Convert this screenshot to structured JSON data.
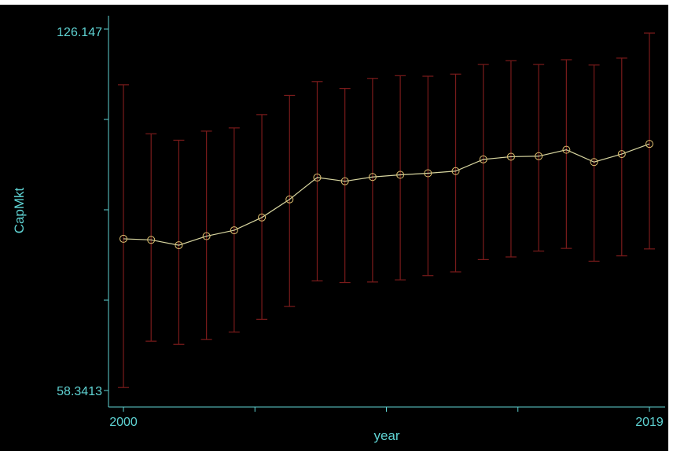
{
  "chart_data": {
    "type": "line",
    "xlabel": "year",
    "ylabel": "CapMkt",
    "x_ticks_labels": [
      "2000",
      "2019"
    ],
    "y_ticks_labels": [
      "58.3413",
      "126.147"
    ],
    "xlim": [
      2000,
      2019
    ],
    "ylim": [
      58.3413,
      126.147
    ],
    "x": [
      2000,
      2001,
      2002,
      2003,
      2004,
      2005,
      2006,
      2007,
      2008,
      2009,
      2010,
      2011,
      2012,
      2013,
      2014,
      2015,
      2016,
      2017,
      2018,
      2019
    ],
    "series": [
      {
        "values": [
          86.8,
          86.6,
          85.6,
          87.3,
          88.4,
          90.8,
          94.2,
          98.3,
          97.6,
          98.4,
          98.8,
          99.1,
          99.5,
          101.7,
          102.2,
          102.3,
          103.5,
          101.2,
          102.7,
          104.6
        ],
        "error_low": [
          58.9,
          67.6,
          67.0,
          67.9,
          69.3,
          71.7,
          74.1,
          78.9,
          78.6,
          78.7,
          79.1,
          79.9,
          80.6,
          82.9,
          83.4,
          84.5,
          85.0,
          82.6,
          83.6,
          84.9
        ],
        "error_high": [
          115.7,
          106.5,
          105.3,
          107.0,
          107.6,
          110.1,
          113.7,
          116.3,
          115.0,
          116.9,
          117.4,
          117.3,
          117.7,
          119.5,
          120.2,
          119.5,
          120.4,
          119.4,
          120.7,
          125.4
        ]
      }
    ],
    "colors": {
      "background": "#000000",
      "axis": "#5fd3d3",
      "tick_label": "#5fd3d3",
      "line": "#d8d6a0",
      "marker": "#e0c070",
      "error_bar": "#7a1b1b"
    },
    "grid": false
  }
}
